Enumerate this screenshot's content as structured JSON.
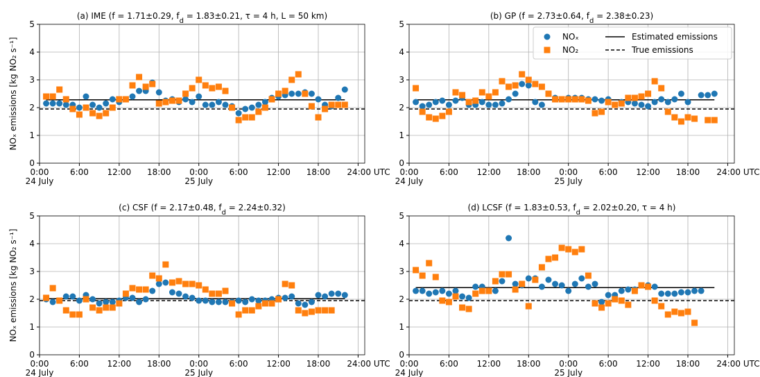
{
  "chart_data": [
    {
      "type": "scatter",
      "title": "(a) IME (f = 1.71±0.29, f_d = 1.83±0.21, τ = 4 h, L = 50 km)",
      "ylabel": "NOₓ emissions [kg NO₂ s⁻¹]",
      "x": [
        1,
        2,
        3,
        4,
        5,
        6,
        7,
        8,
        9,
        10,
        11,
        12,
        13,
        14,
        15,
        16,
        17,
        18,
        19,
        20,
        21,
        22,
        23,
        24,
        25,
        26,
        27,
        28,
        29,
        30,
        31,
        32,
        33,
        34,
        35,
        36,
        37,
        38,
        39,
        40,
        41,
        42,
        43,
        44,
        45,
        46
      ],
      "series": [
        {
          "name": "NOₓ",
          "color": "#1f77b4",
          "marker": "circle",
          "values": [
            2.15,
            2.15,
            2.15,
            2.1,
            2.1,
            2.0,
            2.4,
            2.1,
            2.0,
            2.15,
            2.3,
            2.2,
            2.3,
            2.4,
            2.6,
            2.6,
            2.9,
            2.55,
            2.25,
            2.3,
            2.2,
            2.3,
            2.2,
            2.4,
            2.1,
            2.1,
            2.2,
            2.1,
            2.05,
            1.8,
            1.95,
            2.0,
            2.1,
            2.2,
            2.35,
            2.4,
            2.45,
            2.5,
            2.5,
            2.55,
            2.5,
            2.3,
            2.1,
            2.05,
            2.35,
            2.65
          ]
        },
        {
          "name": "NO₂",
          "color": "#ff7f0e",
          "marker": "square",
          "values": [
            2.4,
            2.4,
            2.65,
            2.3,
            1.95,
            1.75,
            2.0,
            1.8,
            1.7,
            1.8,
            2.0,
            2.3,
            2.3,
            2.8,
            3.1,
            2.75,
            2.85,
            2.15,
            2.2,
            2.25,
            2.25,
            2.5,
            2.7,
            3.0,
            2.8,
            2.7,
            2.75,
            2.6,
            2.0,
            1.55,
            1.65,
            1.65,
            1.85,
            2.0,
            2.3,
            2.5,
            2.6,
            3.0,
            3.2,
            2.5,
            2.05,
            1.65,
            1.95,
            2.1,
            2.1,
            2.1
          ]
        }
      ],
      "hlines": [
        {
          "name": "Estimated emissions",
          "y": 2.28,
          "x": [
            1,
            46
          ],
          "dashed": false
        },
        {
          "name": "True emissions",
          "y": 1.95,
          "x": [
            0,
            49
          ],
          "dashed": true
        }
      ],
      "xlim": [
        0,
        49
      ],
      "ylim": [
        0,
        5
      ],
      "yticks": [
        0,
        1,
        2,
        3,
        4,
        5
      ],
      "xticks": [
        {
          "value": 0,
          "label": "0:00\n24 July"
        },
        {
          "value": 6,
          "label": "6:00"
        },
        {
          "value": 12,
          "label": "12:00"
        },
        {
          "value": 18,
          "label": "18:00"
        },
        {
          "value": 24,
          "label": "0:00\n25 July"
        },
        {
          "value": 30,
          "label": "6:00"
        },
        {
          "value": 36,
          "label": "12:00"
        },
        {
          "value": 42,
          "label": "18:00"
        },
        {
          "value": 48,
          "label": "24:00 UTC"
        }
      ],
      "grid": true
    },
    {
      "type": "scatter",
      "title": "(b) GP (f = 2.73±0.64, f_d = 2.38±0.23)",
      "legend": "upper right",
      "x": [
        1,
        2,
        3,
        4,
        5,
        6,
        7,
        8,
        9,
        10,
        11,
        12,
        13,
        14,
        15,
        16,
        17,
        18,
        19,
        20,
        21,
        22,
        23,
        24,
        25,
        26,
        27,
        28,
        29,
        30,
        31,
        32,
        33,
        34,
        35,
        36,
        37,
        38,
        39,
        40,
        41,
        42,
        43,
        44,
        45,
        46
      ],
      "series": [
        {
          "name": "NOₓ",
          "color": "#1f77b4",
          "marker": "circle",
          "values": [
            2.2,
            2.05,
            2.1,
            2.2,
            2.25,
            2.1,
            2.25,
            2.35,
            2.1,
            2.1,
            2.2,
            2.1,
            2.1,
            2.15,
            2.3,
            2.5,
            2.85,
            2.8,
            2.2,
            2.1,
            2.5,
            2.35,
            2.3,
            2.35,
            2.35,
            2.35,
            2.3,
            2.3,
            2.25,
            2.3,
            2.1,
            2.2,
            2.2,
            2.15,
            2.1,
            2.05,
            2.2,
            2.3,
            2.2,
            2.3,
            2.5,
            2.2,
            null,
            2.45,
            2.45,
            2.5
          ]
        },
        {
          "name": "NO₂",
          "color": "#ff7f0e",
          "marker": "square",
          "values": [
            2.7,
            1.85,
            1.65,
            1.6,
            1.7,
            1.85,
            2.55,
            2.45,
            2.2,
            2.25,
            2.55,
            2.4,
            2.55,
            2.95,
            2.75,
            2.8,
            3.2,
            3.0,
            2.85,
            2.75,
            2.5,
            2.3,
            2.3,
            2.3,
            2.3,
            2.3,
            2.25,
            1.8,
            1.85,
            2.2,
            2.1,
            2.15,
            2.35,
            2.35,
            2.4,
            2.5,
            2.95,
            2.7,
            1.85,
            1.65,
            1.5,
            1.65,
            1.6,
            null,
            1.55,
            1.55
          ]
        }
      ],
      "hlines": [
        {
          "name": "Estimated emissions",
          "y": 2.28,
          "x": [
            1,
            46
          ],
          "dashed": false
        },
        {
          "name": "True emissions",
          "y": 1.95,
          "x": [
            0,
            49
          ],
          "dashed": true
        }
      ],
      "xlim": [
        0,
        49
      ],
      "ylim": [
        0,
        5
      ],
      "yticks": [
        0,
        1,
        2,
        3,
        4,
        5
      ],
      "xticks": [
        {
          "value": 0,
          "label": "0:00\n24 July"
        },
        {
          "value": 6,
          "label": "6:00"
        },
        {
          "value": 12,
          "label": "12:00"
        },
        {
          "value": 18,
          "label": "18:00"
        },
        {
          "value": 24,
          "label": "0:00\n25 July"
        },
        {
          "value": 30,
          "label": "6:00"
        },
        {
          "value": 36,
          "label": "12:00"
        },
        {
          "value": 42,
          "label": "18:00"
        },
        {
          "value": 48,
          "label": "24:00 UTC"
        }
      ],
      "grid": true
    },
    {
      "type": "scatter",
      "title": "(c) CSF (f = 2.17±0.48, f_d = 2.24±0.32)",
      "ylabel": "NOₓ emissions [kg NO₂ s⁻¹]",
      "x": [
        1,
        2,
        3,
        4,
        5,
        6,
        7,
        8,
        9,
        10,
        11,
        12,
        13,
        14,
        15,
        16,
        17,
        18,
        19,
        20,
        21,
        22,
        23,
        24,
        25,
        26,
        27,
        28,
        29,
        30,
        31,
        32,
        33,
        34,
        35,
        36,
        37,
        38,
        39,
        40,
        41,
        42,
        43,
        44,
        45,
        46
      ],
      "series": [
        {
          "name": "NOₓ",
          "color": "#1f77b4",
          "marker": "circle",
          "values": [
            2.0,
            1.9,
            1.95,
            2.1,
            2.1,
            1.95,
            2.15,
            2.0,
            1.85,
            1.9,
            1.9,
            1.95,
            2.05,
            2.05,
            1.9,
            2.0,
            2.3,
            2.55,
            2.6,
            2.25,
            2.2,
            2.1,
            2.05,
            1.95,
            1.95,
            1.9,
            1.9,
            1.9,
            1.9,
            1.95,
            1.9,
            2.0,
            1.95,
            1.95,
            2.0,
            2.05,
            2.05,
            2.1,
            1.85,
            1.8,
            1.9,
            2.15,
            2.1,
            2.2,
            2.2,
            2.15
          ]
        },
        {
          "name": "NO₂",
          "color": "#ff7f0e",
          "marker": "square",
          "values": [
            2.05,
            2.4,
            1.95,
            1.6,
            1.45,
            1.45,
            2.0,
            1.7,
            1.6,
            1.7,
            1.7,
            1.85,
            2.2,
            2.4,
            2.35,
            2.35,
            2.85,
            2.75,
            3.25,
            2.6,
            2.65,
            2.55,
            2.55,
            2.5,
            2.35,
            2.2,
            2.2,
            2.3,
            1.85,
            1.45,
            1.6,
            1.6,
            1.75,
            1.85,
            1.85,
            2.0,
            2.55,
            2.5,
            1.6,
            1.5,
            1.55,
            1.6,
            1.6,
            1.6,
            null,
            null
          ]
        }
      ],
      "hlines": [
        {
          "name": "Estimated emissions",
          "y": 2.02,
          "x": [
            1,
            46
          ],
          "dashed": false
        },
        {
          "name": "True emissions",
          "y": 1.95,
          "x": [
            0,
            49
          ],
          "dashed": true
        }
      ],
      "xlim": [
        0,
        49
      ],
      "ylim": [
        0,
        5
      ],
      "yticks": [
        0,
        1,
        2,
        3,
        4,
        5
      ],
      "xticks": [
        {
          "value": 0,
          "label": "0:00\n24 July"
        },
        {
          "value": 6,
          "label": "6:00"
        },
        {
          "value": 12,
          "label": "12:00"
        },
        {
          "value": 18,
          "label": "18:00"
        },
        {
          "value": 24,
          "label": "0:00\n25 July"
        },
        {
          "value": 30,
          "label": "6:00"
        },
        {
          "value": 36,
          "label": "12:00"
        },
        {
          "value": 42,
          "label": "18:00"
        },
        {
          "value": 48,
          "label": "24:00 UTC"
        }
      ],
      "grid": true
    },
    {
      "type": "scatter",
      "title": "(d) LCSF (f = 1.83±0.53, f_d = 2.02±0.20, τ = 4 h)",
      "x": [
        1,
        2,
        3,
        4,
        5,
        6,
        7,
        8,
        9,
        10,
        11,
        12,
        13,
        14,
        15,
        16,
        17,
        18,
        19,
        20,
        21,
        22,
        23,
        24,
        25,
        26,
        27,
        28,
        29,
        30,
        31,
        32,
        33,
        34,
        35,
        36,
        37,
        38,
        39,
        40,
        41,
        42,
        43,
        44,
        45,
        46
      ],
      "series": [
        {
          "name": "NOₓ",
          "color": "#1f77b4",
          "marker": "circle",
          "values": [
            2.3,
            2.3,
            2.2,
            2.25,
            2.3,
            2.2,
            2.3,
            2.1,
            2.05,
            2.45,
            2.45,
            2.3,
            2.3,
            2.65,
            4.2,
            2.55,
            2.5,
            2.75,
            2.75,
            2.45,
            2.7,
            2.55,
            2.5,
            2.3,
            2.55,
            2.75,
            2.45,
            2.55,
            1.9,
            2.15,
            2.15,
            2.3,
            2.35,
            2.35,
            2.5,
            2.5,
            2.45,
            2.2,
            2.2,
            2.2,
            2.25,
            2.25,
            2.3,
            2.3,
            null,
            null
          ]
        },
        {
          "name": "NO₂",
          "color": "#ff7f0e",
          "marker": "square",
          "values": [
            3.05,
            2.85,
            3.3,
            2.8,
            1.95,
            1.9,
            2.1,
            1.7,
            1.65,
            2.2,
            2.3,
            2.3,
            2.65,
            2.9,
            2.9,
            2.35,
            2.55,
            1.75,
            2.7,
            3.15,
            3.45,
            3.5,
            3.85,
            3.8,
            3.7,
            3.8,
            2.85,
            1.85,
            1.7,
            1.85,
            2.0,
            1.95,
            1.8,
            2.3,
            2.5,
            2.45,
            1.95,
            1.75,
            1.45,
            1.55,
            1.5,
            1.55,
            1.15,
            null,
            null,
            null
          ]
        }
      ],
      "hlines": [
        {
          "name": "Estimated emissions",
          "y": 2.42,
          "x": [
            1,
            46
          ],
          "dashed": false
        },
        {
          "name": "True emissions",
          "y": 1.95,
          "x": [
            0,
            49
          ],
          "dashed": true
        }
      ],
      "xlim": [
        0,
        49
      ],
      "ylim": [
        0,
        5
      ],
      "yticks": [
        0,
        1,
        2,
        3,
        4,
        5
      ],
      "xticks": [
        {
          "value": 0,
          "label": "0:00\n24 July"
        },
        {
          "value": 6,
          "label": "6:00"
        },
        {
          "value": 12,
          "label": "12:00"
        },
        {
          "value": 18,
          "label": "18:00"
        },
        {
          "value": 24,
          "label": "0:00\n25 July"
        },
        {
          "value": 30,
          "label": "6:00"
        },
        {
          "value": 36,
          "label": "12:00"
        },
        {
          "value": 42,
          "label": "18:00"
        },
        {
          "value": 48,
          "label": "24:00 UTC"
        }
      ],
      "grid": true
    }
  ]
}
